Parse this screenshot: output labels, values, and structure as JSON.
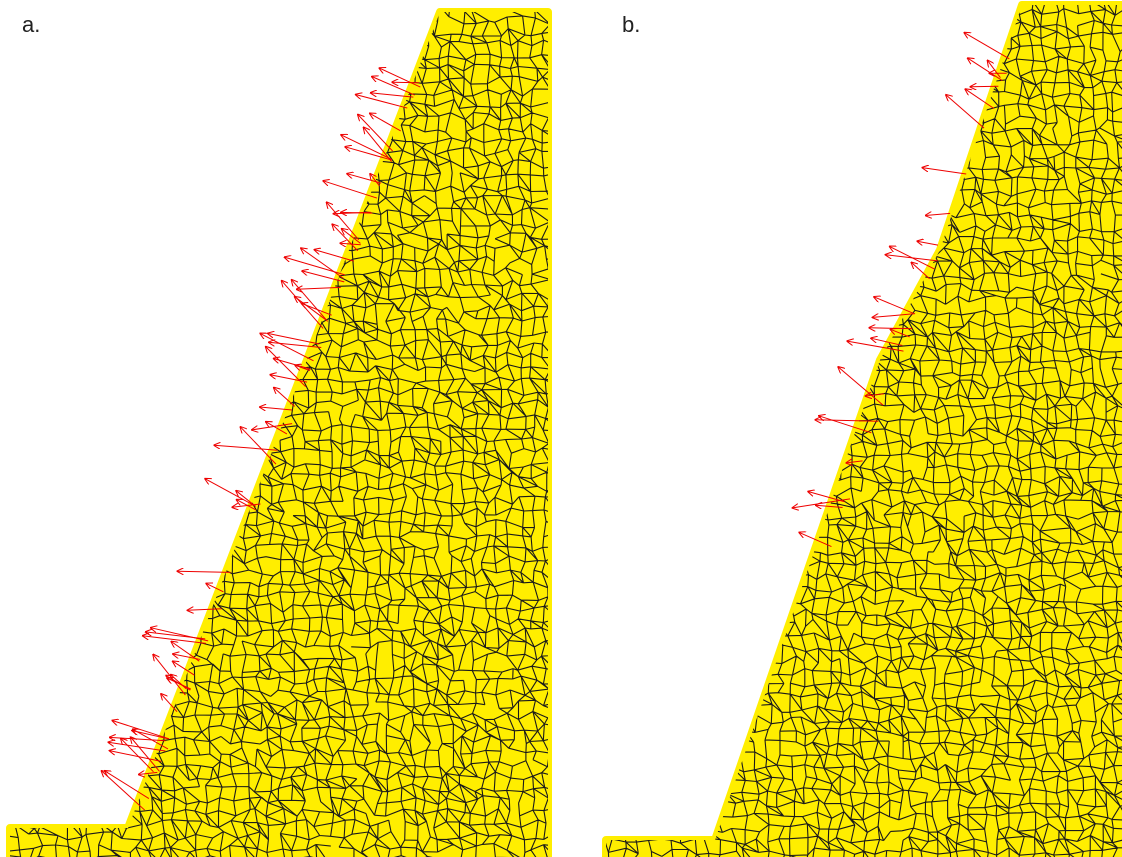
{
  "panels": [
    {
      "label": "a."
    },
    {
      "label": "b."
    }
  ]
}
